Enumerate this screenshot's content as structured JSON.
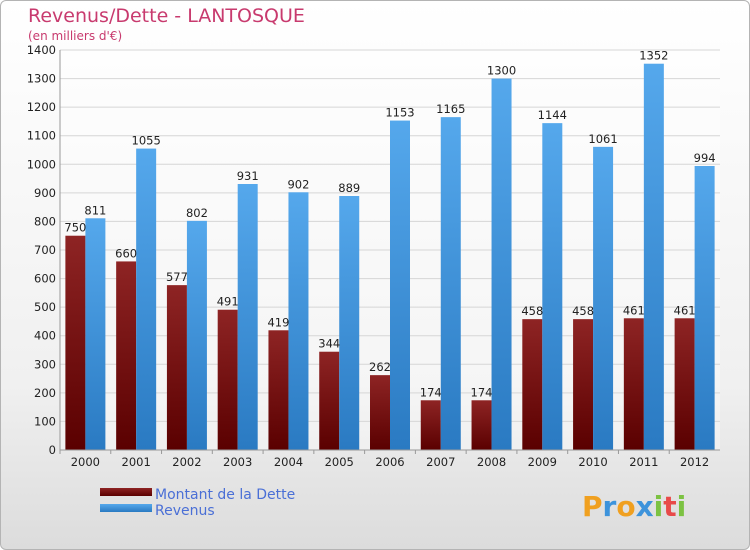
{
  "chart_data": {
    "type": "bar",
    "title": "Revenus/Dette - LANTOSQUE",
    "subtitle": "(en milliers d'€)",
    "categories": [
      "2000",
      "2001",
      "2002",
      "2003",
      "2004",
      "2005",
      "2006",
      "2007",
      "2008",
      "2009",
      "2010",
      "2011",
      "2012"
    ],
    "series": [
      {
        "name": "Montant de la Dette",
        "color": "#7a1414",
        "values": [
          750,
          660,
          577,
          491,
          419,
          344,
          262,
          174,
          174,
          458,
          458,
          461,
          461
        ]
      },
      {
        "name": "Revenus",
        "color": "#3d93db",
        "values": [
          811,
          1055,
          802,
          931,
          902,
          889,
          1153,
          1165,
          1300,
          1144,
          1061,
          1352,
          994
        ]
      }
    ],
    "ylim": [
      0,
      1400
    ],
    "yticks": [
      0,
      100,
      200,
      300,
      400,
      500,
      600,
      700,
      800,
      900,
      1000,
      1100,
      1200,
      1300,
      1400
    ],
    "grid": true,
    "legend": "bottom-left"
  },
  "logo": {
    "letters": [
      "P",
      "r",
      "o",
      "x",
      "i",
      "t",
      "i"
    ],
    "colors": [
      "#f0a020",
      "#3d93db",
      "#f0a020",
      "#3d93db",
      "#7cc242",
      "#e84a4a",
      "#7cc242"
    ]
  }
}
